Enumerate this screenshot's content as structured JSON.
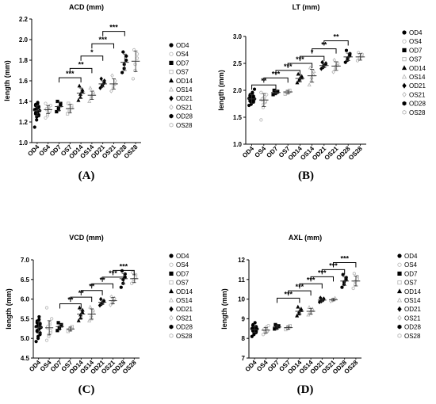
{
  "chart_data": [
    {
      "type": "scatter",
      "panel_label": "(A)",
      "title": "ACD (mm)",
      "ylabel": "length (mm)",
      "ylim": [
        1.0,
        2.2
      ],
      "yticks": [
        "1.0",
        "1.2",
        "1.4",
        "1.6",
        "1.8",
        "2.0",
        "2.2"
      ],
      "categories": [
        "OD4",
        "OS4",
        "OD7",
        "OS7",
        "OD14",
        "OS14",
        "OD21",
        "OS21",
        "OD28",
        "OS28"
      ],
      "means": [
        1.31,
        1.32,
        1.35,
        1.33,
        1.48,
        1.46,
        1.57,
        1.57,
        1.78,
        1.79
      ],
      "sd": [
        0.05,
        0.04,
        0.04,
        0.04,
        0.05,
        0.04,
        0.03,
        0.05,
        0.08,
        0.1
      ],
      "points": [
        [
          1.15,
          1.22,
          1.25,
          1.26,
          1.27,
          1.28,
          1.29,
          1.3,
          1.3,
          1.31,
          1.32,
          1.33,
          1.33,
          1.34,
          1.35,
          1.36,
          1.37,
          1.38,
          1.39
        ],
        [
          1.24,
          1.26,
          1.28,
          1.3,
          1.31,
          1.32,
          1.33,
          1.34,
          1.35,
          1.36,
          1.38
        ],
        [
          1.3,
          1.32,
          1.34,
          1.36,
          1.38,
          1.4
        ],
        [
          1.28,
          1.3,
          1.32,
          1.34,
          1.36,
          1.38
        ],
        [
          1.41,
          1.44,
          1.47,
          1.49,
          1.51,
          1.55
        ],
        [
          1.4,
          1.43,
          1.45,
          1.47,
          1.49,
          1.53
        ],
        [
          1.53,
          1.55,
          1.56,
          1.58,
          1.6,
          1.62
        ],
        [
          1.5,
          1.53,
          1.55,
          1.57,
          1.6,
          1.65
        ],
        [
          1.68,
          1.72,
          1.76,
          1.8,
          1.84,
          1.88
        ],
        [
          1.62,
          1.7,
          1.76,
          1.82,
          1.86,
          1.9
        ]
      ],
      "brackets": [
        {
          "from": 2,
          "to": 4,
          "y": 1.63,
          "label": "***"
        },
        {
          "from": 3,
          "to": 5,
          "y": 1.72,
          "label": "**"
        },
        {
          "from": 4,
          "to": 6,
          "y": 1.84,
          "label": "*"
        },
        {
          "from": 5,
          "to": 7,
          "y": 1.96,
          "label": "***"
        },
        {
          "from": 6,
          "to": 8,
          "y": 2.08,
          "label": "***"
        }
      ]
    },
    {
      "type": "scatter",
      "panel_label": "(B)",
      "title": "LT (mm)",
      "ylabel": "length (mm)",
      "ylim": [
        1.0,
        3.0
      ],
      "yticks": [
        "1.0",
        "1.5",
        "2.0",
        "2.5",
        "3.0"
      ],
      "categories": [
        "OD4",
        "OS4",
        "OD7",
        "OS7",
        "OD14",
        "OS14",
        "OD21",
        "OS21",
        "OD28",
        "OS28"
      ],
      "means": [
        1.84,
        1.82,
        1.96,
        1.97,
        2.22,
        2.27,
        2.46,
        2.45,
        2.62,
        2.62
      ],
      "sd": [
        0.08,
        0.12,
        0.03,
        0.03,
        0.06,
        0.12,
        0.04,
        0.08,
        0.07,
        0.06
      ],
      "points": [
        [
          1.72,
          1.74,
          1.76,
          1.78,
          1.79,
          1.8,
          1.81,
          1.82,
          1.83,
          1.84,
          1.85,
          1.86,
          1.87,
          1.88,
          1.89,
          1.9,
          1.92,
          1.94,
          1.96,
          2.02
        ],
        [
          1.45,
          1.68,
          1.74,
          1.78,
          1.8,
          1.82,
          1.84,
          1.86,
          1.88,
          1.92,
          1.96
        ],
        [
          1.92,
          1.94,
          1.96,
          1.97,
          1.98,
          2.0
        ],
        [
          1.93,
          1.95,
          1.97,
          1.98,
          2.0
        ],
        [
          2.14,
          2.18,
          2.21,
          2.23,
          2.26,
          2.3
        ],
        [
          2.1,
          2.18,
          2.24,
          2.29,
          2.35,
          2.42
        ],
        [
          2.4,
          2.43,
          2.46,
          2.48,
          2.5,
          2.52
        ],
        [
          2.34,
          2.4,
          2.44,
          2.47,
          2.5,
          2.56
        ],
        [
          2.52,
          2.56,
          2.6,
          2.64,
          2.68,
          2.74
        ],
        [
          2.55,
          2.58,
          2.61,
          2.64,
          2.67,
          2.7
        ]
      ],
      "brackets": [
        {
          "from": 0,
          "to": 2,
          "y": 2.1,
          "label": "**"
        },
        {
          "from": 1,
          "to": 3,
          "y": 2.23,
          "label": "***"
        },
        {
          "from": 2,
          "to": 4,
          "y": 2.37,
          "label": "***"
        },
        {
          "from": 3,
          "to": 5,
          "y": 2.5,
          "label": "***"
        },
        {
          "from": 4,
          "to": 6,
          "y": 2.63,
          "label": "*"
        },
        {
          "from": 5,
          "to": 7,
          "y": 2.77,
          "label": "**"
        },
        {
          "from": 6,
          "to": 8,
          "y": 2.92,
          "label": "**"
        }
      ]
    },
    {
      "type": "scatter",
      "panel_label": "(C)",
      "title": "VCD (mm)",
      "ylabel": "length (mm)",
      "ylim": [
        4.5,
        7.0
      ],
      "yticks": [
        "4.5",
        "5.0",
        "5.5",
        "6.0",
        "6.5",
        "7.0"
      ],
      "categories": [
        "OD4",
        "OS4",
        "OD7",
        "OS7",
        "OD14",
        "OS14",
        "OD21",
        "OS21",
        "OD28",
        "OS28"
      ],
      "means": [
        5.28,
        5.27,
        5.3,
        5.24,
        5.62,
        5.62,
        5.92,
        5.96,
        6.52,
        6.52
      ],
      "sd": [
        0.15,
        0.18,
        0.06,
        0.05,
        0.1,
        0.13,
        0.06,
        0.08,
        0.13,
        0.1
      ],
      "points": [
        [
          4.92,
          5.0,
          5.05,
          5.1,
          5.14,
          5.18,
          5.2,
          5.23,
          5.26,
          5.28,
          5.3,
          5.32,
          5.34,
          5.36,
          5.38,
          5.4,
          5.44,
          5.48,
          5.55
        ],
        [
          4.95,
          5.05,
          5.1,
          5.15,
          5.2,
          5.26,
          5.3,
          5.35,
          5.4,
          5.5,
          5.78
        ],
        [
          5.2,
          5.25,
          5.28,
          5.32,
          5.35,
          5.4
        ],
        [
          5.18,
          5.21,
          5.24,
          5.27,
          5.3
        ],
        [
          5.45,
          5.52,
          5.6,
          5.66,
          5.72,
          5.78
        ],
        [
          5.45,
          5.5,
          5.58,
          5.65,
          5.72,
          5.8
        ],
        [
          5.84,
          5.88,
          5.9,
          5.94,
          5.96,
          6.0
        ],
        [
          5.85,
          5.9,
          5.94,
          5.98,
          6.02,
          6.06
        ],
        [
          6.3,
          6.4,
          6.5,
          6.56,
          6.64,
          6.72
        ],
        [
          6.4,
          6.45,
          6.5,
          6.56,
          6.62,
          6.68
        ]
      ],
      "brackets": [
        {
          "from": 2,
          "to": 4,
          "y": 5.88,
          "label": "**"
        },
        {
          "from": 3,
          "to": 5,
          "y": 6.05,
          "label": "**"
        },
        {
          "from": 4,
          "to": 6,
          "y": 6.22,
          "label": "**"
        },
        {
          "from": 5,
          "to": 7,
          "y": 6.39,
          "label": "**"
        },
        {
          "from": 6,
          "to": 8,
          "y": 6.56,
          "label": "***"
        },
        {
          "from": 7,
          "to": 9,
          "y": 6.73,
          "label": "***"
        }
      ]
    },
    {
      "type": "scatter",
      "panel_label": "(D)",
      "title": "AXL (mm)",
      "ylabel": "length (mm)",
      "ylim": [
        7,
        12
      ],
      "yticks": [
        "7",
        "8",
        "9",
        "10",
        "11",
        "12"
      ],
      "categories": [
        "OD4",
        "OS4",
        "OD7",
        "OS7",
        "OD14",
        "OS14",
        "OD21",
        "OS21",
        "OD28",
        "OS28"
      ],
      "means": [
        8.45,
        8.42,
        8.58,
        8.55,
        9.38,
        9.38,
        9.95,
        9.97,
        10.92,
        10.92
      ],
      "sd": [
        0.15,
        0.14,
        0.1,
        0.08,
        0.15,
        0.15,
        0.08,
        0.06,
        0.22,
        0.25
      ],
      "points": [
        [
          8.1,
          8.2,
          8.25,
          8.3,
          8.35,
          8.38,
          8.4,
          8.42,
          8.45,
          8.48,
          8.5,
          8.52,
          8.55,
          8.58,
          8.6,
          8.65,
          8.7,
          8.8
        ],
        [
          8.2,
          8.28,
          8.32,
          8.36,
          8.4,
          8.44,
          8.48,
          8.52,
          8.58,
          8.65
        ],
        [
          8.48,
          8.52,
          8.56,
          8.6,
          8.64,
          8.7
        ],
        [
          8.45,
          8.5,
          8.55,
          8.6,
          8.65
        ],
        [
          9.15,
          9.25,
          9.35,
          9.42,
          9.5,
          9.6
        ],
        [
          9.2,
          9.28,
          9.35,
          9.42,
          9.5,
          9.58
        ],
        [
          9.85,
          9.9,
          9.94,
          9.98,
          10.02,
          10.06
        ],
        [
          9.9,
          9.94,
          9.97,
          10.0,
          10.04
        ],
        [
          10.6,
          10.75,
          10.88,
          10.98,
          11.1,
          11.25
        ],
        [
          10.55,
          10.75,
          10.9,
          11.02,
          11.15,
          11.3
        ]
      ],
      "brackets": [
        {
          "from": 2,
          "to": 4,
          "y": 10.05,
          "label": "***"
        },
        {
          "from": 3,
          "to": 5,
          "y": 10.42,
          "label": "***"
        },
        {
          "from": 4,
          "to": 6,
          "y": 10.78,
          "label": "***"
        },
        {
          "from": 5,
          "to": 7,
          "y": 11.14,
          "label": "***"
        },
        {
          "from": 6,
          "to": 8,
          "y": 11.5,
          "label": "***"
        },
        {
          "from": 7,
          "to": 9,
          "y": 11.86,
          "label": "***"
        }
      ]
    }
  ],
  "legend": {
    "entries": [
      "OD4",
      "OS4",
      "OD7",
      "OS7",
      "OD14",
      "OS14",
      "OD21",
      "OS21",
      "OD28",
      "OS28"
    ],
    "markers": [
      "filled-circle",
      "open-circle",
      "filled-square",
      "open-square",
      "filled-triangle",
      "open-triangle",
      "filled-diamond",
      "open-diamond",
      "filled-hexagon",
      "open-hexagon"
    ]
  },
  "colors": {
    "od_marker": "#000000",
    "os_marker": "#b3b3b3",
    "axis": "#000000",
    "mean_bar": "#333333"
  }
}
